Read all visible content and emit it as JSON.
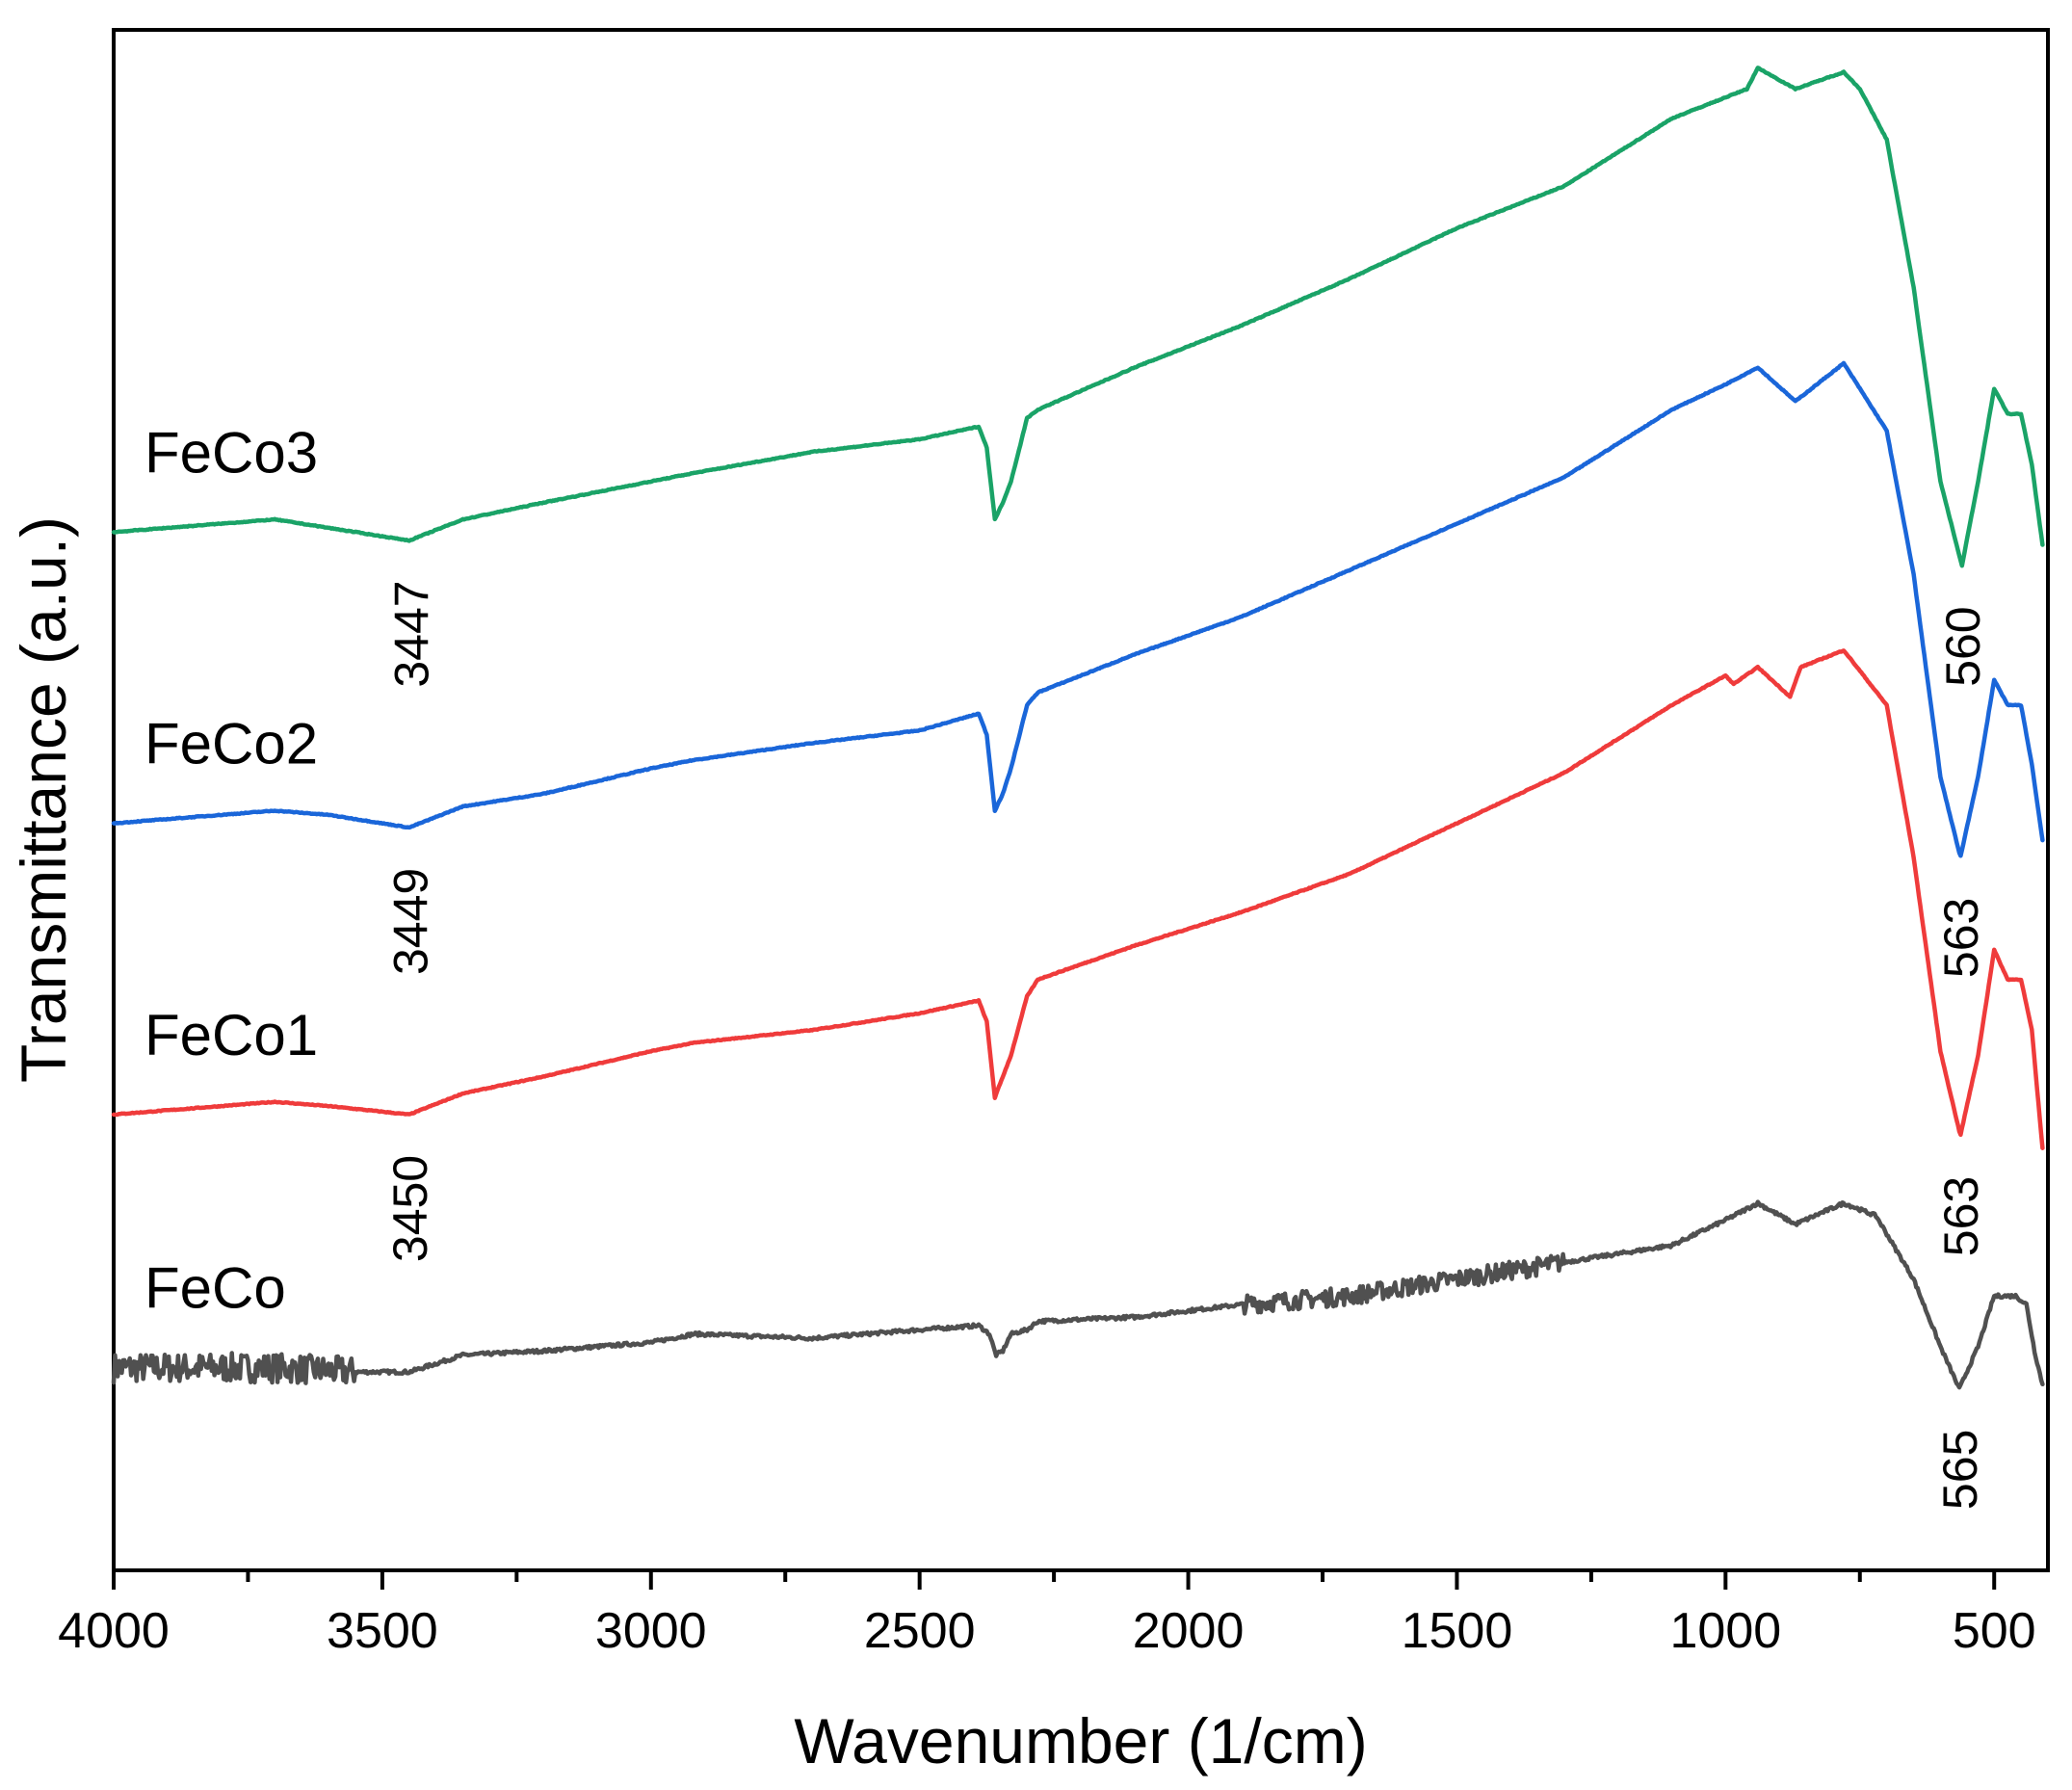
{
  "chart_data": {
    "type": "line",
    "title": "",
    "xlabel": "Wavenumber (1/cm)",
    "ylabel": "Transmittance (a.u.)",
    "xlim": [
      4000,
      400
    ],
    "x_reversed": true,
    "xticks": [
      4000,
      3500,
      3000,
      2500,
      2000,
      1500,
      1000,
      500
    ],
    "xminor_step": 250,
    "yticks": [],
    "grid": false,
    "legend": "none (series labeled directly on plot)",
    "series": [
      {
        "name": "FeCo",
        "color": "#505050",
        "noise": 1,
        "points": [
          [
            4000,
            -1.22
          ],
          [
            3850,
            -1.22
          ],
          [
            3700,
            -1.22
          ],
          [
            3550,
            -1.23
          ],
          [
            3450,
            -1.23
          ],
          [
            3350,
            -1.19
          ],
          [
            3200,
            -1.18
          ],
          [
            3000,
            -1.16
          ],
          [
            2920,
            -1.14
          ],
          [
            2700,
            -1.15
          ],
          [
            2500,
            -1.13
          ],
          [
            2390,
            -1.12
          ],
          [
            2370,
            -1.14
          ],
          [
            2358,
            -1.19
          ],
          [
            2345,
            -1.18
          ],
          [
            2330,
            -1.14
          ],
          [
            2300,
            -1.13
          ],
          [
            2280,
            -1.11
          ],
          [
            2100,
            -1.1
          ],
          [
            1900,
            -1.07
          ],
          [
            1700,
            -1.05
          ],
          [
            1500,
            -1.01
          ],
          [
            1300,
            -0.97
          ],
          [
            1100,
            -0.93
          ],
          [
            1000,
            -0.87
          ],
          [
            940,
            -0.83
          ],
          [
            870,
            -0.88
          ],
          [
            780,
            -0.83
          ],
          [
            720,
            -0.86
          ],
          [
            650,
            -1.01
          ],
          [
            600,
            -1.17
          ],
          [
            565,
            -1.27
          ],
          [
            530,
            -1.17
          ],
          [
            500,
            -1.05
          ],
          [
            460,
            -1.05
          ],
          [
            440,
            -1.07
          ],
          [
            425,
            -1.18
          ],
          [
            410,
            -1.26
          ]
        ]
      },
      {
        "name": "FeCo1",
        "color": "#ef3b3b",
        "noise": 0.25,
        "points": [
          [
            4000,
            -0.62
          ],
          [
            3700,
            -0.59
          ],
          [
            3600,
            -0.6
          ],
          [
            3450,
            -0.62
          ],
          [
            3350,
            -0.57
          ],
          [
            3200,
            -0.53
          ],
          [
            3000,
            -0.47
          ],
          [
            2920,
            -0.45
          ],
          [
            2700,
            -0.42
          ],
          [
            2500,
            -0.38
          ],
          [
            2390,
            -0.35
          ],
          [
            2375,
            -0.4
          ],
          [
            2360,
            -0.58
          ],
          [
            2345,
            -0.53
          ],
          [
            2330,
            -0.48
          ],
          [
            2300,
            -0.34
          ],
          [
            2280,
            -0.3
          ],
          [
            2100,
            -0.22
          ],
          [
            1900,
            -0.14
          ],
          [
            1700,
            -0.05
          ],
          [
            1500,
            0.07
          ],
          [
            1300,
            0.19
          ],
          [
            1100,
            0.35
          ],
          [
            1000,
            0.42
          ],
          [
            985,
            0.4
          ],
          [
            940,
            0.44
          ],
          [
            880,
            0.37
          ],
          [
            860,
            0.44
          ],
          [
            780,
            0.48
          ],
          [
            700,
            0.35
          ],
          [
            650,
            -0.01
          ],
          [
            600,
            -0.47
          ],
          [
            563,
            -0.67
          ],
          [
            530,
            -0.48
          ],
          [
            500,
            -0.23
          ],
          [
            475,
            -0.3
          ],
          [
            450,
            -0.3
          ],
          [
            430,
            -0.42
          ],
          [
            410,
            -0.7
          ]
        ]
      },
      {
        "name": "FeCo2",
        "color": "#1a66d9",
        "noise": 0.25,
        "points": [
          [
            4000,
            0.07
          ],
          [
            3700,
            0.1
          ],
          [
            3600,
            0.09
          ],
          [
            3450,
            0.06
          ],
          [
            3350,
            0.11
          ],
          [
            3200,
            0.14
          ],
          [
            3000,
            0.2
          ],
          [
            2920,
            0.22
          ],
          [
            2700,
            0.26
          ],
          [
            2500,
            0.29
          ],
          [
            2390,
            0.33
          ],
          [
            2375,
            0.28
          ],
          [
            2360,
            0.1
          ],
          [
            2345,
            0.14
          ],
          [
            2330,
            0.2
          ],
          [
            2300,
            0.35
          ],
          [
            2280,
            0.38
          ],
          [
            2100,
            0.47
          ],
          [
            1900,
            0.56
          ],
          [
            1700,
            0.67
          ],
          [
            1500,
            0.78
          ],
          [
            1300,
            0.89
          ],
          [
            1100,
            1.05
          ],
          [
            1000,
            1.11
          ],
          [
            940,
            1.15
          ],
          [
            870,
            1.07
          ],
          [
            780,
            1.16
          ],
          [
            700,
            1.0
          ],
          [
            650,
            0.66
          ],
          [
            600,
            0.18
          ],
          [
            563,
            -0.01
          ],
          [
            530,
            0.18
          ],
          [
            500,
            0.41
          ],
          [
            475,
            0.35
          ],
          [
            450,
            0.35
          ],
          [
            430,
            0.21
          ],
          [
            410,
            0.03
          ]
        ]
      },
      {
        "name": "FeCo3",
        "color": "#1aa367",
        "noise": 0.25,
        "points": [
          [
            4000,
            0.76
          ],
          [
            3700,
            0.79
          ],
          [
            3600,
            0.77
          ],
          [
            3450,
            0.74
          ],
          [
            3350,
            0.79
          ],
          [
            3200,
            0.83
          ],
          [
            3000,
            0.88
          ],
          [
            2920,
            0.9
          ],
          [
            2700,
            0.95
          ],
          [
            2500,
            0.98
          ],
          [
            2390,
            1.01
          ],
          [
            2375,
            0.96
          ],
          [
            2360,
            0.79
          ],
          [
            2345,
            0.83
          ],
          [
            2330,
            0.88
          ],
          [
            2300,
            1.03
          ],
          [
            2280,
            1.05
          ],
          [
            2100,
            1.15
          ],
          [
            1900,
            1.25
          ],
          [
            1700,
            1.36
          ],
          [
            1500,
            1.48
          ],
          [
            1300,
            1.58
          ],
          [
            1100,
            1.74
          ],
          [
            1000,
            1.79
          ],
          [
            960,
            1.81
          ],
          [
            940,
            1.86
          ],
          [
            870,
            1.81
          ],
          [
            780,
            1.85
          ],
          [
            750,
            1.81
          ],
          [
            700,
            1.69
          ],
          [
            650,
            1.34
          ],
          [
            600,
            0.88
          ],
          [
            560,
            0.68
          ],
          [
            530,
            0.88
          ],
          [
            500,
            1.1
          ],
          [
            475,
            1.04
          ],
          [
            450,
            1.04
          ],
          [
            430,
            0.92
          ],
          [
            410,
            0.73
          ]
        ]
      }
    ],
    "series_labels": [
      {
        "text": "FeCo3",
        "series": "FeCo3"
      },
      {
        "text": "FeCo2",
        "series": "FeCo2"
      },
      {
        "text": "FeCo1",
        "series": "FeCo1"
      },
      {
        "text": "FeCo",
        "series": "FeCo"
      }
    ],
    "annotations": [
      {
        "text": "3447",
        "x": 3447,
        "series": "FeCo3"
      },
      {
        "text": "560",
        "x": 560,
        "series": "FeCo3"
      },
      {
        "text": "3449",
        "x": 3449,
        "series": "FeCo2"
      },
      {
        "text": "563",
        "x": 563,
        "series": "FeCo2"
      },
      {
        "text": "3450",
        "x": 3450,
        "series": "FeCo1"
      },
      {
        "text": "563",
        "x": 563,
        "series": "FeCo1"
      },
      {
        "text": "565",
        "x": 565,
        "series": "FeCo"
      }
    ]
  }
}
